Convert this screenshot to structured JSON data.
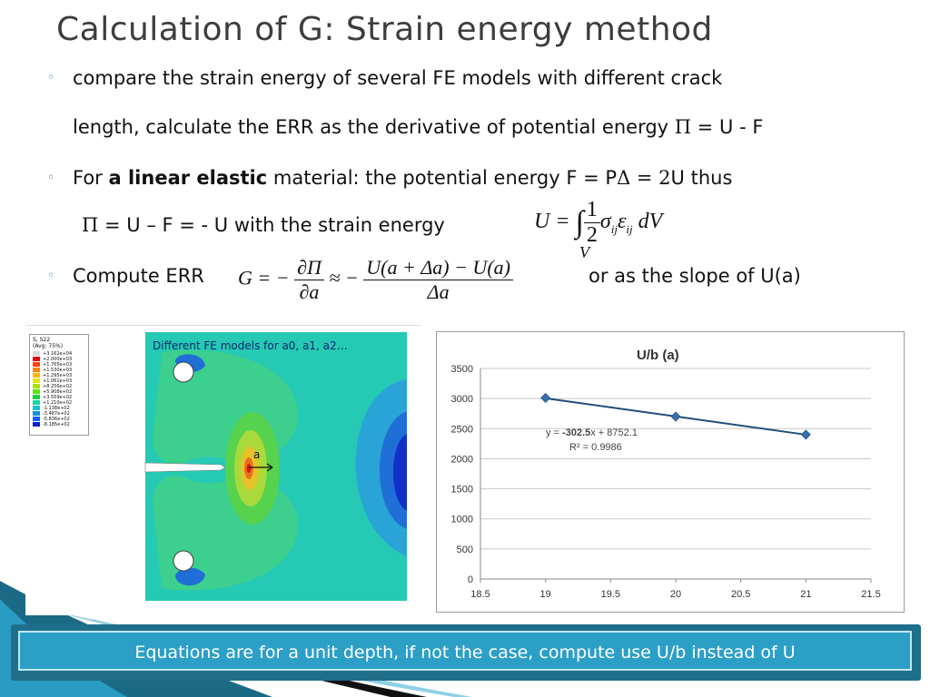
{
  "title": "Calculation of G:  Strain energy method",
  "bullets": {
    "b1_line1": "compare the strain energy of several FE models with different crack",
    "b1_line2_pre": "length, calculate the ERR as the derivative of potential energy ",
    "b1_line2_post": " = U - F",
    "b2_pre": "For ",
    "b2_bold": "a linear elastic",
    "b2_post": " material: the potential energy F = P",
    "b2_tail": "U thus",
    "line_pi": " = U – F = - U  with  the strain energy",
    "b3_pre": "Compute ERR",
    "b3_post": "or as the slope of U(a)"
  },
  "fe_figure": {
    "label": "Different FE models for a0, a1, a2…",
    "crack_label": "a",
    "legend_title": "S, S22",
    "legend_avg": "(Avg: 75%)",
    "legend_values": [
      "+3.162e+04",
      "+2.000e+03",
      "+1.765e+03",
      "+1.530e+03",
      "+1.295e+03",
      "+1.061e+03",
      "+8.256e+02",
      "+5.908e+02",
      "+3.559e+02",
      "+1.210e+02",
      "-1.138e+02",
      "-3.487e+02",
      "-5.836e+02",
      "-8.185e+02"
    ],
    "legend_colors": [
      "#d9d9d9",
      "#e60000",
      "#ff4000",
      "#ff8000",
      "#ffb400",
      "#e6e600",
      "#a6e600",
      "#5ae600",
      "#10d93a",
      "#10d9a0",
      "#10c4d9",
      "#1090e6",
      "#1060ff",
      "#0a1ed9"
    ]
  },
  "chart_data": {
    "type": "scatter",
    "title": "U/b (a)",
    "x": [
      19,
      20,
      21
    ],
    "y": [
      3010,
      2700,
      2400
    ],
    "xlim": [
      18.5,
      21.5
    ],
    "ylim": [
      0,
      3500
    ],
    "x_ticks": [
      "18.5",
      "19",
      "19.5",
      "20",
      "20.5",
      "21",
      "21.5"
    ],
    "y_ticks": [
      "0",
      "500",
      "1000",
      "1500",
      "2000",
      "2500",
      "3000",
      "3500"
    ],
    "trendline": {
      "slope": -302.5,
      "intercept": 8752.1
    },
    "eq_pre": "y = ",
    "eq_bold": "-302.5",
    "eq_post": "x + 8752.1",
    "r2": "R² = 0.9986",
    "grid": true,
    "marker_color": "#3a6ea8",
    "line_color": "#1f4e79"
  },
  "footer": "Equations are for a unit depth, if not the case, compute use U/b instead of U"
}
